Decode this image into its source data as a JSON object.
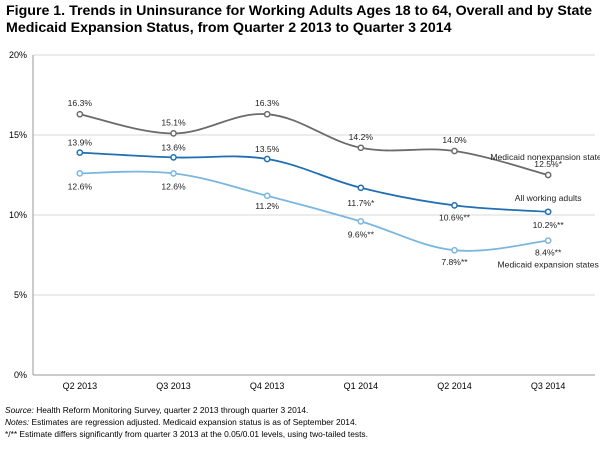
{
  "title_lines": [
    "Figure 1. Trends in Uninsurance for Working Adults Ages 18 to 64, Overall and by State",
    "Medicaid Expansion Status, from Quarter 2 2013 to Quarter 3 2014"
  ],
  "notes": {
    "source_label": "Source:",
    "source_text": " Health Reform Monitoring Survey, quarter 2 2013 through quarter 3 2014.",
    "notes_label": "Notes:",
    "notes_text": " Estimates are regression adjusted. Medicaid expansion status is as of September 2014.",
    "significance": "*/** Estimate differs significantly from quarter 3 2013 at the 0.05/0.01 levels, using two-tailed tests."
  },
  "chart_data": {
    "type": "line",
    "title": "Figure 1. Trends in Uninsurance for Working Adults Ages 18 to 64, Overall and by State Medicaid Expansion Status, from Quarter 2 2013 to Quarter 3 2014",
    "xlabel": "",
    "ylabel": "",
    "categories": [
      "Q2 2013",
      "Q3 2013",
      "Q4 2013",
      "Q1 2014",
      "Q2 2014",
      "Q3 2014"
    ],
    "ylim": [
      0,
      20
    ],
    "yticks": [
      0,
      5,
      10,
      15,
      20
    ],
    "ytick_labels": [
      "0%",
      "5%",
      "10%",
      "15%",
      "20%"
    ],
    "grid": "horizontal",
    "legend": "line-end labels",
    "series": [
      {
        "name": "Medicaid nonexpansion states",
        "color": "#6b6b6b",
        "values": [
          16.3,
          15.1,
          16.3,
          14.2,
          14.0,
          12.5
        ],
        "labels": [
          "16.3%",
          "15.1%",
          "16.3%",
          "14.2%",
          "14.0%",
          "12.5%*"
        ]
      },
      {
        "name": "All working adults",
        "color": "#1f6fb2",
        "values": [
          13.9,
          13.6,
          13.5,
          11.7,
          10.6,
          10.2
        ],
        "labels": [
          "13.9%",
          "13.6%",
          "13.5%",
          "11.7%*",
          "10.6%**",
          "10.2%**"
        ]
      },
      {
        "name": "Medicaid expansion states",
        "color": "#79b6e0",
        "values": [
          12.6,
          12.6,
          11.2,
          9.6,
          7.8,
          8.4
        ],
        "labels": [
          "12.6%",
          "12.6%",
          "11.2%",
          "9.6%**",
          "7.8%**",
          "8.4%**"
        ]
      }
    ]
  }
}
